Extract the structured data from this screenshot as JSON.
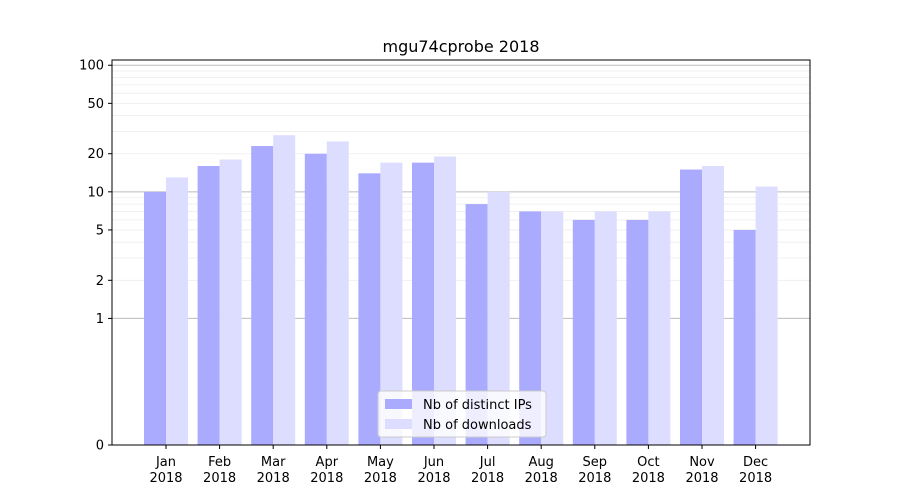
{
  "chart_data": {
    "type": "bar",
    "title": "mgu74cprobe 2018",
    "xlabel": "",
    "ylabel": "",
    "y_scale": "symlog",
    "ylim": [
      0,
      110
    ],
    "y_ticks": [
      0,
      1,
      2,
      5,
      10,
      20,
      50,
      100
    ],
    "y_tick_labels": [
      "0",
      "1",
      "2",
      "5",
      "10",
      "20",
      "50",
      "100"
    ],
    "categories": [
      {
        "month": "Jan",
        "year": "2018"
      },
      {
        "month": "Feb",
        "year": "2018"
      },
      {
        "month": "Mar",
        "year": "2018"
      },
      {
        "month": "Apr",
        "year": "2018"
      },
      {
        "month": "May",
        "year": "2018"
      },
      {
        "month": "Jun",
        "year": "2018"
      },
      {
        "month": "Jul",
        "year": "2018"
      },
      {
        "month": "Aug",
        "year": "2018"
      },
      {
        "month": "Sep",
        "year": "2018"
      },
      {
        "month": "Oct",
        "year": "2018"
      },
      {
        "month": "Nov",
        "year": "2018"
      },
      {
        "month": "Dec",
        "year": "2018"
      }
    ],
    "series": [
      {
        "name": "Nb of distinct IPs",
        "color": "#aaaaff",
        "values": [
          10,
          16,
          23,
          20,
          14,
          17,
          8,
          7,
          6,
          6,
          15,
          5
        ]
      },
      {
        "name": "Nb of downloads",
        "color": "#ddddff",
        "values": [
          13,
          18,
          28,
          25,
          17,
          19,
          10,
          7,
          7,
          7,
          16,
          11
        ]
      }
    ],
    "grid": true,
    "legend_position": "bottom-center"
  }
}
